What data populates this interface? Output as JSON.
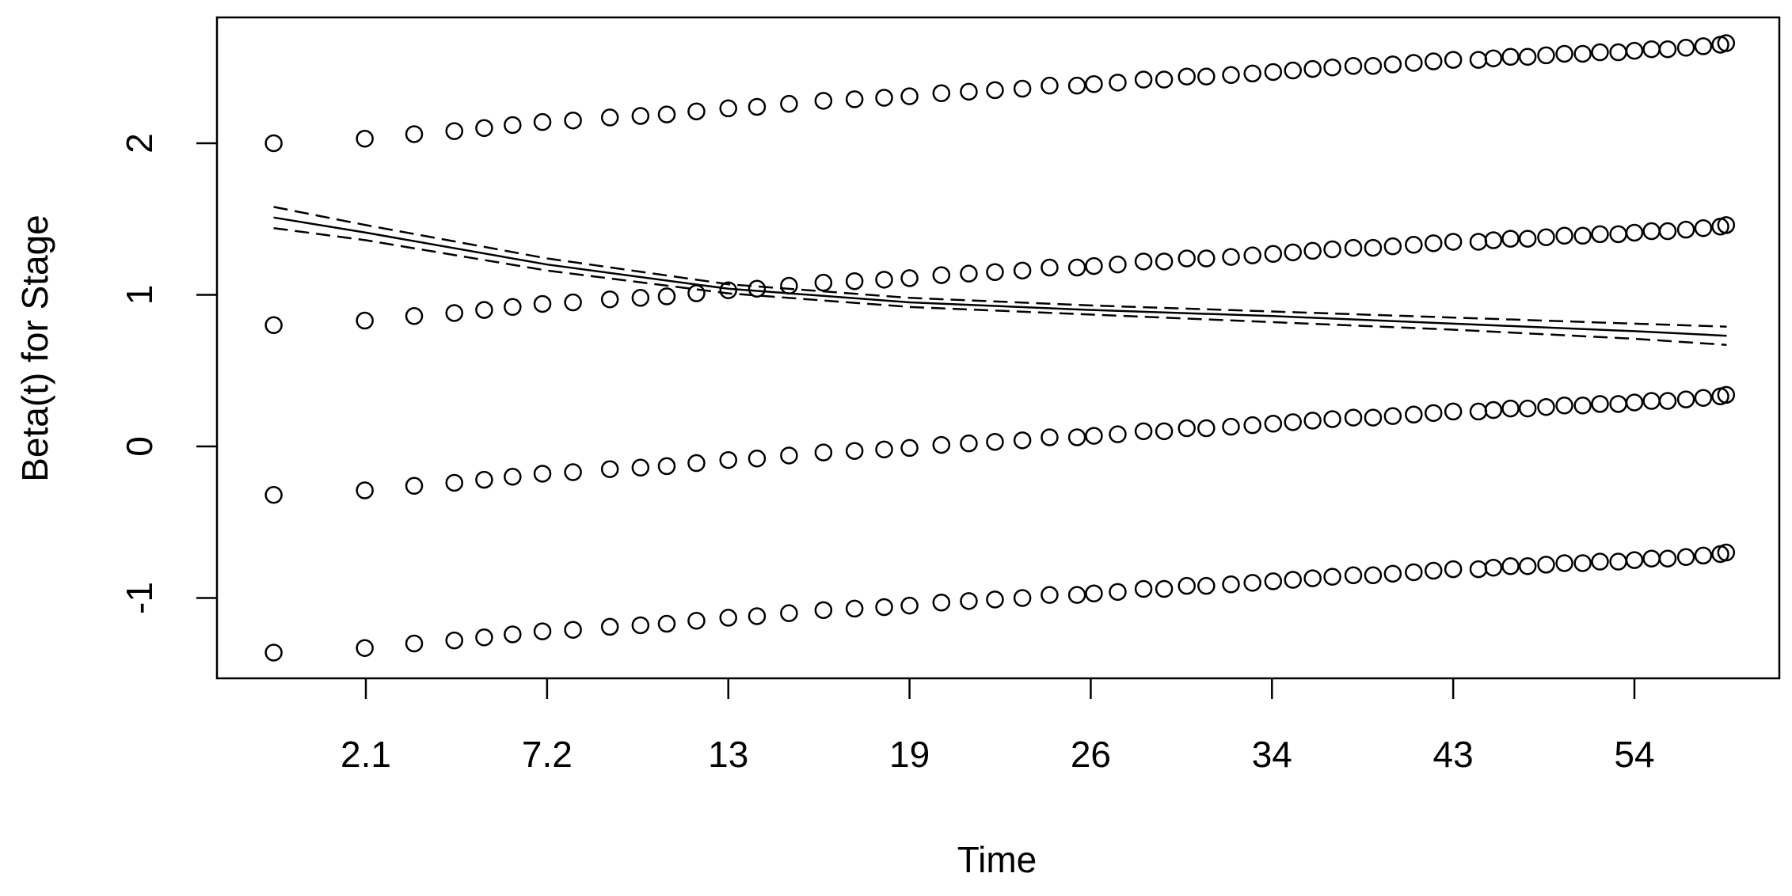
{
  "chart_data": {
    "type": "scatter",
    "x_label": "Time",
    "y_label": "Beta(t) for Stage",
    "x_scale": "tick-spaced",
    "xlim": [
      -2.1,
      62.8
    ],
    "xticks": [
      2.1,
      7.2,
      13,
      19,
      26,
      34,
      43,
      54
    ],
    "ylim": [
      -1.53,
      2.83
    ],
    "yticks": [
      -1,
      0,
      1,
      2
    ],
    "x": [
      -0.5,
      2.07,
      3.46,
      4.59,
      5.43,
      6.23,
      7.07,
      8.03,
      9.21,
      10.19,
      11.03,
      11.98,
      13.0,
      13.95,
      15.01,
      16.15,
      17.18,
      18.16,
      19.0,
      20.23,
      21.29,
      22.3,
      23.36,
      24.41,
      25.47,
      26.14,
      27.19,
      28.33,
      29.24,
      30.24,
      31.1,
      32.19,
      33.14,
      34.06,
      35.04,
      36.02,
      37.0,
      38.04,
      39.02,
      40.0,
      41.04,
      42.02,
      43.0,
      44.53,
      45.44,
      46.48,
      47.52,
      48.64,
      49.75,
      50.86,
      51.91,
      53.02,
      54.0,
      55.04,
      56.02,
      57.13,
      58.18,
      59.22,
      59.57
    ],
    "series": [
      {
        "kind": "points",
        "color": "#000000",
        "values": [
          2.0,
          2.03,
          2.06,
          2.08,
          2.1,
          2.12,
          2.14,
          2.15,
          2.17,
          2.18,
          2.19,
          2.21,
          2.23,
          2.24,
          2.26,
          2.28,
          2.29,
          2.3,
          2.31,
          2.33,
          2.34,
          2.35,
          2.36,
          2.38,
          2.38,
          2.39,
          2.4,
          2.42,
          2.42,
          2.44,
          2.44,
          2.45,
          2.46,
          2.47,
          2.48,
          2.49,
          2.5,
          2.51,
          2.51,
          2.52,
          2.53,
          2.54,
          2.55,
          2.55,
          2.56,
          2.57,
          2.57,
          2.58,
          2.59,
          2.59,
          2.6,
          2.6,
          2.61,
          2.62,
          2.62,
          2.63,
          2.64,
          2.65,
          2.66
        ]
      },
      {
        "kind": "points",
        "color": "#000000",
        "values": [
          0.8,
          0.83,
          0.86,
          0.88,
          0.9,
          0.92,
          0.94,
          0.95,
          0.97,
          0.98,
          0.99,
          1.01,
          1.03,
          1.04,
          1.06,
          1.08,
          1.09,
          1.1,
          1.11,
          1.13,
          1.14,
          1.15,
          1.16,
          1.18,
          1.18,
          1.19,
          1.2,
          1.22,
          1.22,
          1.24,
          1.24,
          1.25,
          1.26,
          1.27,
          1.28,
          1.29,
          1.3,
          1.31,
          1.31,
          1.32,
          1.33,
          1.34,
          1.35,
          1.35,
          1.36,
          1.37,
          1.37,
          1.38,
          1.39,
          1.39,
          1.4,
          1.4,
          1.41,
          1.42,
          1.42,
          1.43,
          1.44,
          1.45,
          1.46
        ]
      },
      {
        "kind": "points",
        "color": "#000000",
        "values": [
          -0.32,
          -0.29,
          -0.26,
          -0.24,
          -0.22,
          -0.2,
          -0.18,
          -0.17,
          -0.15,
          -0.14,
          -0.13,
          -0.11,
          -0.09,
          -0.08,
          -0.06,
          -0.04,
          -0.03,
          -0.02,
          -0.01,
          0.01,
          0.02,
          0.03,
          0.04,
          0.06,
          0.06,
          0.07,
          0.08,
          0.1,
          0.1,
          0.12,
          0.12,
          0.13,
          0.14,
          0.15,
          0.16,
          0.17,
          0.18,
          0.19,
          0.19,
          0.2,
          0.21,
          0.22,
          0.23,
          0.23,
          0.24,
          0.25,
          0.25,
          0.26,
          0.27,
          0.27,
          0.28,
          0.28,
          0.29,
          0.3,
          0.3,
          0.31,
          0.32,
          0.33,
          0.34
        ]
      },
      {
        "kind": "points",
        "color": "#000000",
        "values": [
          -1.36,
          -1.33,
          -1.3,
          -1.28,
          -1.26,
          -1.24,
          -1.22,
          -1.21,
          -1.19,
          -1.18,
          -1.17,
          -1.15,
          -1.13,
          -1.12,
          -1.1,
          -1.08,
          -1.07,
          -1.06,
          -1.05,
          -1.03,
          -1.02,
          -1.01,
          -1.0,
          -0.98,
          -0.98,
          -0.97,
          -0.96,
          -0.94,
          -0.94,
          -0.92,
          -0.92,
          -0.91,
          -0.9,
          -0.89,
          -0.88,
          -0.87,
          -0.86,
          -0.85,
          -0.85,
          -0.84,
          -0.83,
          -0.82,
          -0.81,
          -0.81,
          -0.8,
          -0.79,
          -0.79,
          -0.78,
          -0.77,
          -0.77,
          -0.76,
          -0.76,
          -0.75,
          -0.74,
          -0.74,
          -0.73,
          -0.72,
          -0.71,
          -0.7
        ]
      },
      {
        "kind": "line",
        "style": "solid",
        "color": "#000000",
        "x": [
          -0.5,
          2.1,
          7.2,
          13,
          19,
          26,
          34,
          43,
          54,
          59.6
        ],
        "values": [
          1.51,
          1.41,
          1.2,
          1.04,
          0.95,
          0.9,
          0.86,
          0.81,
          0.76,
          0.73
        ]
      },
      {
        "kind": "line",
        "style": "dashed",
        "color": "#000000",
        "x": [
          -0.5,
          2.1,
          7.2,
          13,
          19,
          26,
          34,
          43,
          54,
          59.6
        ],
        "values": [
          1.58,
          1.46,
          1.24,
          1.07,
          0.98,
          0.93,
          0.89,
          0.85,
          0.81,
          0.79
        ]
      },
      {
        "kind": "line",
        "style": "dashed",
        "color": "#000000",
        "x": [
          -0.5,
          2.1,
          7.2,
          13,
          19,
          26,
          34,
          43,
          54,
          59.6
        ],
        "values": [
          1.44,
          1.36,
          1.16,
          1.01,
          0.92,
          0.87,
          0.82,
          0.77,
          0.71,
          0.67
        ]
      }
    ]
  }
}
